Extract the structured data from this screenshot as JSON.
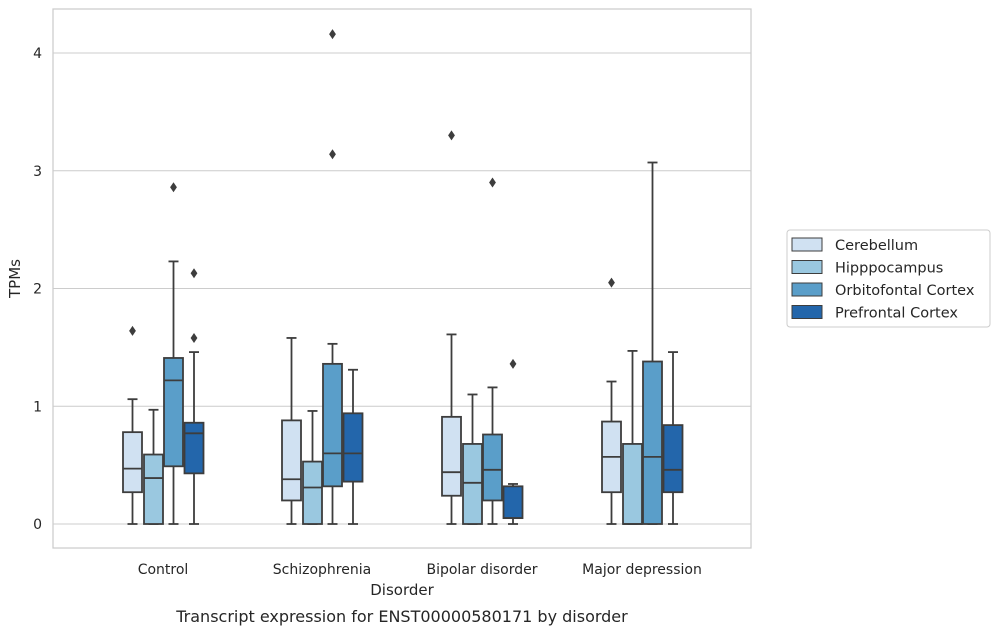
{
  "chart_data": {
    "type": "box",
    "title": "",
    "caption": "Transcript expression for ENST00000580171 by disorder",
    "xlabel": "Disorder",
    "ylabel": "TPMs",
    "ylim": [
      -0.2,
      4.38
    ],
    "yticks": [
      "0",
      "1",
      "2",
      "3",
      "4"
    ],
    "ytick_values": [
      0,
      1,
      2,
      3,
      4
    ],
    "grid": "horizontal",
    "legend_position": "right",
    "categories": [
      "Control",
      "Schizophrenia",
      "Bipolar disorder",
      "Major depression"
    ],
    "series": [
      {
        "name": "Cerebellum",
        "color": "#d0e1f2",
        "boxes": [
          {
            "whislo": 0.0,
            "q1": 0.27,
            "med": 0.47,
            "q3": 0.78,
            "whishi": 1.06,
            "fliers": [
              1.64
            ]
          },
          {
            "whislo": 0.0,
            "q1": 0.2,
            "med": 0.38,
            "q3": 0.88,
            "whishi": 1.58,
            "fliers": []
          },
          {
            "whislo": 0.0,
            "q1": 0.24,
            "med": 0.44,
            "q3": 0.91,
            "whishi": 1.61,
            "fliers": [
              3.3
            ]
          },
          {
            "whislo": 0.0,
            "q1": 0.27,
            "med": 0.57,
            "q3": 0.87,
            "whishi": 1.21,
            "fliers": [
              2.05
            ]
          }
        ]
      },
      {
        "name": "Hipppocampus",
        "color": "#9ac8e0",
        "boxes": [
          {
            "whislo": 0.0,
            "q1": 0.0,
            "med": 0.39,
            "q3": 0.59,
            "whishi": 0.97,
            "fliers": []
          },
          {
            "whislo": 0.0,
            "q1": 0.0,
            "med": 0.31,
            "q3": 0.53,
            "whishi": 0.96,
            "fliers": []
          },
          {
            "whislo": 0.0,
            "q1": 0.0,
            "med": 0.35,
            "q3": 0.68,
            "whishi": 1.1,
            "fliers": []
          },
          {
            "whislo": 0.0,
            "q1": 0.0,
            "med": 0.0,
            "q3": 0.68,
            "whishi": 1.47,
            "fliers": []
          }
        ]
      },
      {
        "name": "Orbitofontal Cortex",
        "color": "#5a9ec9",
        "boxes": [
          {
            "whislo": 0.0,
            "q1": 0.49,
            "med": 1.22,
            "q3": 1.41,
            "whishi": 2.23,
            "fliers": [
              2.86
            ]
          },
          {
            "whislo": 0.0,
            "q1": 0.32,
            "med": 0.6,
            "q3": 1.36,
            "whishi": 1.53,
            "fliers": [
              3.14,
              4.16
            ]
          },
          {
            "whislo": 0.0,
            "q1": 0.2,
            "med": 0.46,
            "q3": 0.76,
            "whishi": 1.16,
            "fliers": [
              2.9
            ]
          },
          {
            "whislo": 0.0,
            "q1": 0.0,
            "med": 0.57,
            "q3": 1.38,
            "whishi": 3.07,
            "fliers": []
          }
        ]
      },
      {
        "name": "Prefrontal Cortex",
        "color": "#2366ab",
        "boxes": [
          {
            "whislo": 0.0,
            "q1": 0.43,
            "med": 0.77,
            "q3": 0.86,
            "whishi": 1.46,
            "fliers": [
              1.58,
              2.13
            ]
          },
          {
            "whislo": 0.0,
            "q1": 0.36,
            "med": 0.6,
            "q3": 0.94,
            "whishi": 1.31,
            "fliers": []
          },
          {
            "whislo": 0.0,
            "q1": 0.05,
            "med": 0.05,
            "q3": 0.32,
            "whishi": 0.34,
            "fliers": [
              1.36
            ]
          },
          {
            "whislo": 0.0,
            "q1": 0.27,
            "med": 0.46,
            "q3": 0.84,
            "whishi": 1.46,
            "fliers": []
          }
        ]
      }
    ]
  }
}
